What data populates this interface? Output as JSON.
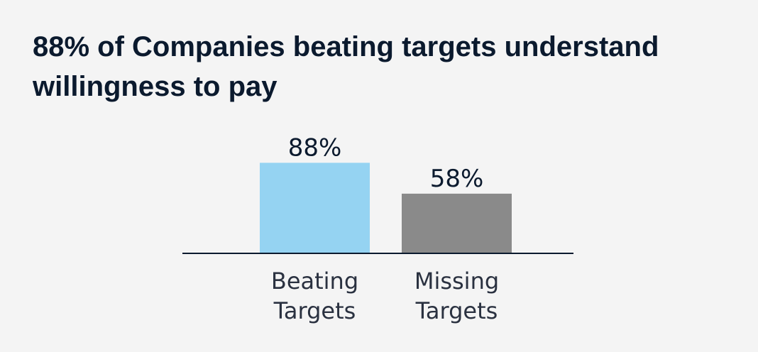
{
  "title": "88% of Companies beating targets understand willingness to pay",
  "colors": {
    "background": "#f4f4f4",
    "text": "#0b1a2e",
    "baseline": "#0b1a2e"
  },
  "chart_data": {
    "type": "bar",
    "title": "88% of Companies beating targets understand willingness to pay",
    "categories": [
      [
        "Beating",
        "Targets"
      ],
      [
        "Missing",
        "Targets"
      ]
    ],
    "values": [
      88,
      58
    ],
    "value_labels": [
      "88%",
      "58%"
    ],
    "bar_colors": [
      "#95d3f2",
      "#8a8a8a"
    ],
    "xlabel": "",
    "ylabel": "",
    "ylim": [
      0,
      100
    ],
    "grid": false,
    "legend": "none"
  }
}
